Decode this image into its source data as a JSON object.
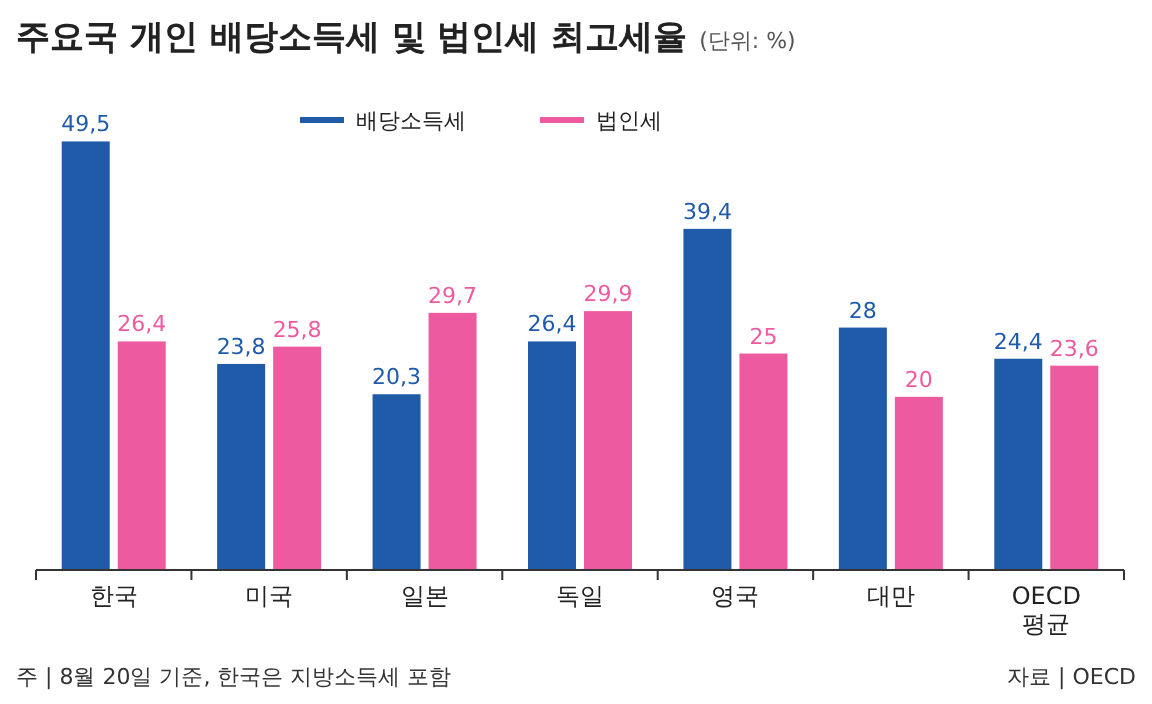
{
  "chart_data": {
    "type": "bar",
    "title": "주요국 개인 배당소득세 및 법인세 최고세율",
    "subtitle": "(단위: %)",
    "categories": [
      "한국",
      "미국",
      "일본",
      "독일",
      "영국",
      "대만",
      "OECD 평균"
    ],
    "series": [
      {
        "name": "배당소득세",
        "color": "#1f5ba8",
        "values": [
          49.5,
          23.8,
          20.3,
          26.4,
          39.4,
          28,
          24.4
        ],
        "value_labels": [
          "49,5",
          "23,8",
          "20,3",
          "26,4",
          "39,4",
          "28",
          "24,4"
        ]
      },
      {
        "name": "법인세",
        "color": "#ee5aa0",
        "values": [
          26.4,
          25.8,
          29.7,
          29.9,
          25,
          20,
          23.6
        ],
        "value_labels": [
          "26,4",
          "25,8",
          "29,7",
          "29,9",
          "25",
          "20",
          "23,6"
        ]
      }
    ],
    "legend": "top",
    "annotations": [
      "주 | 8월 20일 기준, 한국은 지방소득세 포함",
      "자료 | OECD"
    ]
  }
}
